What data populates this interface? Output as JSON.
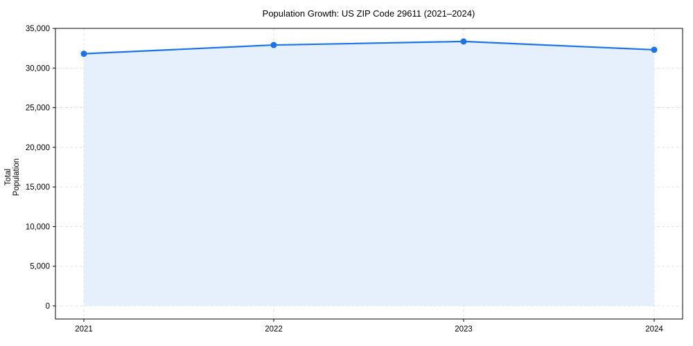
{
  "chart_data": {
    "type": "line",
    "title": "Population Growth: US ZIP Code 29611 (2021–2024)",
    "xlabel": "",
    "ylabel": "Total Population",
    "categories": [
      "2021",
      "2022",
      "2023",
      "2024"
    ],
    "series": [
      {
        "name": "Total Population",
        "values": [
          31800,
          32900,
          33350,
          32300
        ],
        "color": "#1a73e8",
        "fill": "#e3eefd",
        "marker": "circle",
        "area_fill": true
      }
    ],
    "ylim": [
      -1700,
      35000
    ],
    "yticks": [
      0,
      5000,
      10000,
      15000,
      20000,
      25000,
      30000,
      35000
    ],
    "ytick_labels": [
      "0",
      "5,000",
      "10,000",
      "15,000",
      "20,000",
      "25,000",
      "30,000",
      "35,000"
    ],
    "grid": true,
    "legend": null
  }
}
